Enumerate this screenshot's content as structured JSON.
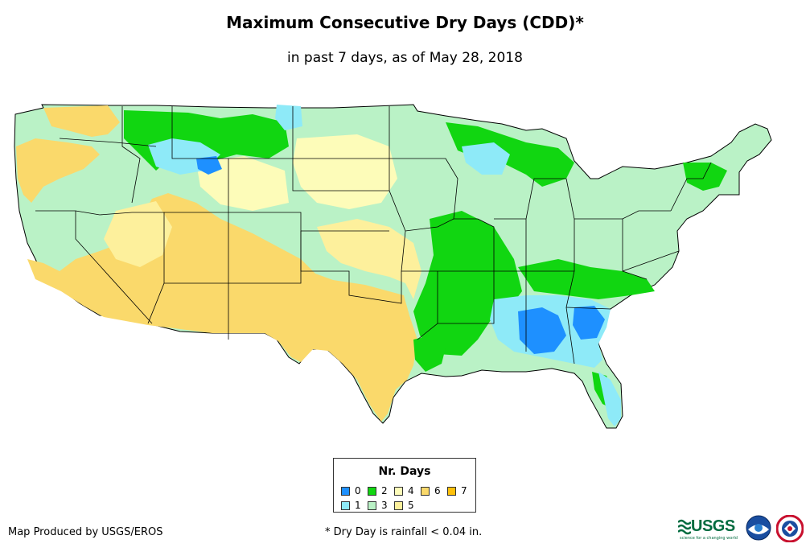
{
  "title": "Maximum Consecutive Dry Days (CDD)*",
  "subtitle": "in past 7 days, as of May 28, 2018",
  "legend": {
    "title": "Nr. Days",
    "rows": [
      [
        {
          "label": "0",
          "color": "#1e90ff"
        },
        {
          "label": "2",
          "color": "#11d611"
        },
        {
          "label": "4",
          "color": "#fdfcb9"
        },
        {
          "label": "6",
          "color": "#fad96b"
        },
        {
          "label": "7",
          "color": "#fec00b"
        }
      ],
      [
        {
          "label": "1",
          "color": "#8eeaf8"
        },
        {
          "label": "3",
          "color": "#baf2c6"
        },
        {
          "label": "5",
          "color": "#fdf09c"
        }
      ]
    ]
  },
  "footer": {
    "credit": "Map Produced by USGS/EROS",
    "note": "* Dry Day is rainfall < 0.04 in."
  },
  "logos": {
    "usgs": "USGS",
    "usgs_tagline": "science for a changing world"
  }
}
